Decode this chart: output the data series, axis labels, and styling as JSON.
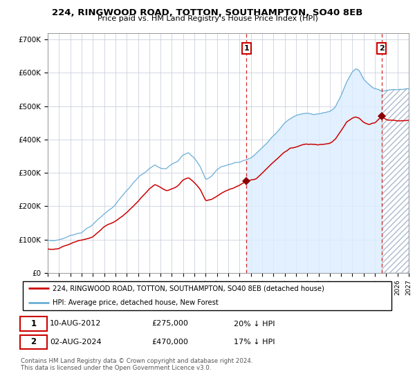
{
  "title": "224, RINGWOOD ROAD, TOTTON, SOUTHAMPTON, SO40 8EB",
  "subtitle": "Price paid vs. HM Land Registry's House Price Index (HPI)",
  "hpi_label": "HPI: Average price, detached house, New Forest",
  "property_label": "224, RINGWOOD ROAD, TOTTON, SOUTHAMPTON, SO40 8EB (detached house)",
  "hpi_color": "#6aaed6",
  "property_color": "#cc0000",
  "marker_color": "#8b0000",
  "fill_color": "#ddeeff",
  "annotation1_date": "10-AUG-2012",
  "annotation1_value": 275000,
  "annotation1_year": 2012.617,
  "annotation1_hpi_pct": "20% ↓ HPI",
  "annotation2_date": "02-AUG-2024",
  "annotation2_value": 470000,
  "annotation2_year": 2024.583,
  "annotation2_hpi_pct": "17% ↓ HPI",
  "ylim": [
    0,
    720000
  ],
  "yticks": [
    0,
    100000,
    200000,
    300000,
    400000,
    500000,
    600000,
    700000
  ],
  "ytick_labels": [
    "£0",
    "£100K",
    "£200K",
    "£300K",
    "£400K",
    "£500K",
    "£600K",
    "£700K"
  ],
  "year_start": 1995,
  "year_end": 2027,
  "copyright_text": "Contains HM Land Registry data © Crown copyright and database right 2024.\nThis data is licensed under the Open Government Licence v3.0."
}
